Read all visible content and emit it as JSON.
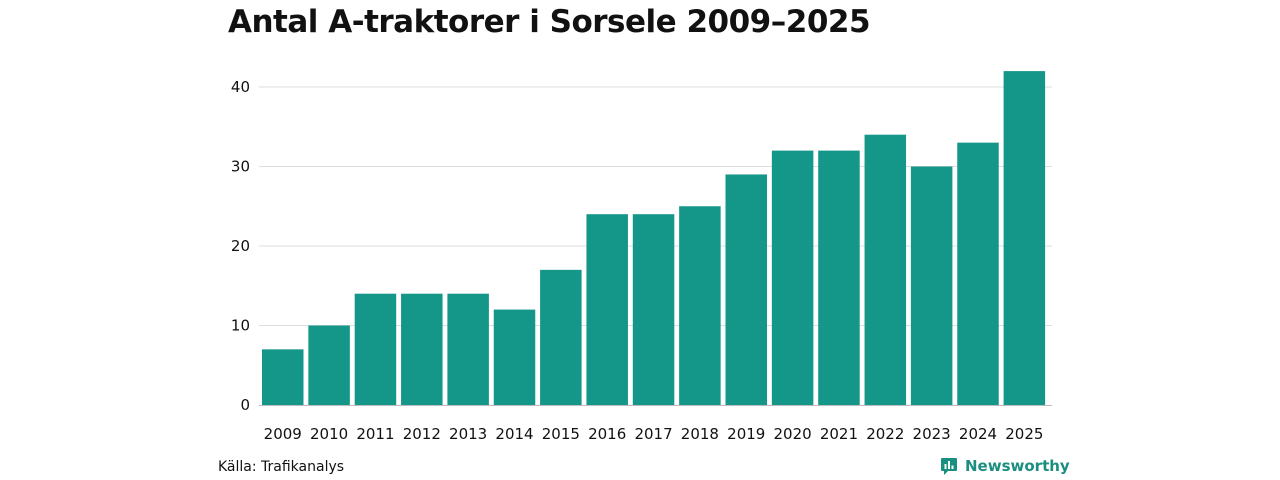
{
  "title": "Antal A-traktorer i Sorsele 2009–2025",
  "source": "Källa: Trafikanalys",
  "brand": {
    "name": "Newsworthy",
    "icon": "newsworthy-logo-icon",
    "color": "#1a8f7f"
  },
  "colors": {
    "bar": "#149688",
    "grid": "#dddddd",
    "axis": "#bbbbbb"
  },
  "chart_data": {
    "type": "bar",
    "title": "Antal A-traktorer i Sorsele 2009–2025",
    "xlabel": "",
    "ylabel": "",
    "categories": [
      "2009",
      "2010",
      "2011",
      "2012",
      "2013",
      "2014",
      "2015",
      "2016",
      "2017",
      "2018",
      "2019",
      "2020",
      "2021",
      "2022",
      "2023",
      "2024",
      "2025"
    ],
    "values": [
      7,
      10,
      14,
      14,
      14,
      12,
      17,
      24,
      24,
      25,
      29,
      32,
      32,
      34,
      30,
      33,
      42
    ],
    "ylim": [
      0,
      42
    ],
    "yticks": [
      0,
      10,
      20,
      30,
      40
    ],
    "grid": true,
    "legend": "none"
  }
}
